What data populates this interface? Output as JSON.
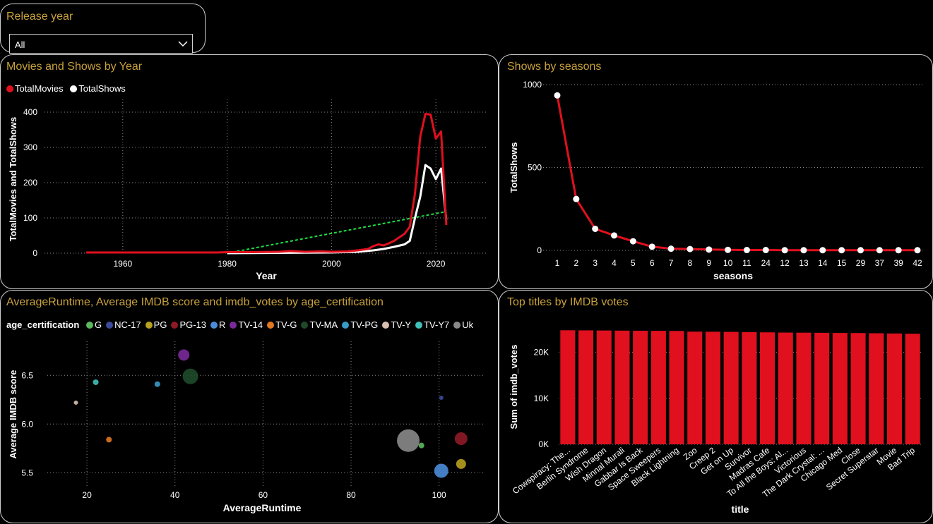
{
  "slicer": {
    "title": "Release year",
    "value": "All"
  },
  "panels": {
    "movies_shows": "Movies and Shows by Year",
    "shows_seasons": "Shows by seasons",
    "scatter": "AverageRuntime, Average IMDB score and imdb_votes by age_certification",
    "top_titles": "Top titles by IMDB votes"
  },
  "colors": {
    "accent": "#c8a13c",
    "movies": "#e0101e",
    "shows": "#ffffff",
    "trend": "#22dd44",
    "bar": "#e0101e"
  },
  "chart_data": [
    {
      "type": "line",
      "title": "Movies and Shows by Year",
      "xlabel": "Year",
      "ylabel": "TotalMovies and TotalShows",
      "xlim": [
        1945,
        2030
      ],
      "ylim": [
        0,
        420
      ],
      "xticks": [
        1960,
        1980,
        2000,
        2020
      ],
      "yticks": [
        0,
        100,
        200,
        300,
        400
      ],
      "legend": "top-left",
      "series": [
        {
          "name": "TotalMovies",
          "color": "#e0101e",
          "x": [
            1953,
            1960,
            1970,
            1978,
            1980,
            1985,
            1990,
            1992,
            1995,
            1998,
            2000,
            2003,
            2005,
            2007,
            2008,
            2009,
            2010,
            2011,
            2012,
            2013,
            2014,
            2015,
            2016,
            2017,
            2018,
            2019,
            2020,
            2021,
            2022
          ],
          "y": [
            2,
            2,
            2,
            2,
            3,
            3,
            4,
            6,
            4,
            5,
            4,
            5,
            8,
            12,
            20,
            25,
            22,
            28,
            35,
            45,
            55,
            75,
            170,
            330,
            395,
            393,
            325,
            345,
            80
          ]
        },
        {
          "name": "TotalShows",
          "color": "#ffffff",
          "x": [
            1980,
            1990,
            2000,
            2005,
            2008,
            2010,
            2012,
            2014,
            2015,
            2016,
            2017,
            2018,
            2019,
            2020,
            2021,
            2022
          ],
          "y": [
            0,
            1,
            2,
            4,
            8,
            12,
            18,
            25,
            35,
            100,
            160,
            250,
            240,
            210,
            240,
            95
          ]
        }
      ],
      "trendline": {
        "color": "#22dd44",
        "x": [
          1980,
          2022
        ],
        "y": [
          0,
          118
        ]
      }
    },
    {
      "type": "line",
      "title": "Shows by seasons",
      "xlabel": "seasons",
      "ylabel": "TotalShows",
      "ylim": [
        0,
        1000
      ],
      "yticks": [
        0,
        500,
        1000
      ],
      "categories": [
        "1",
        "2",
        "3",
        "4",
        "5",
        "6",
        "7",
        "8",
        "9",
        "10",
        "11",
        "24",
        "12",
        "13",
        "14",
        "15",
        "29",
        "37",
        "39",
        "42"
      ],
      "values": [
        935,
        310,
        130,
        90,
        55,
        22,
        10,
        8,
        5,
        3,
        2,
        2,
        1,
        1,
        1,
        1,
        1,
        1,
        1,
        1
      ]
    },
    {
      "type": "scatter",
      "title": "AverageRuntime, Average IMDB score and imdb_votes by age_certification",
      "xlabel": "AverageRuntime",
      "ylabel": "Average IMDB score",
      "legend_title": "age_certification",
      "xlim": [
        11,
        110
      ],
      "ylim": [
        5.35,
        6.85
      ],
      "xticks": [
        20,
        40,
        60,
        80,
        100
      ],
      "yticks": [
        5.5,
        6.0,
        6.5
      ],
      "points": [
        {
          "label": "G",
          "x": 96,
          "y": 5.78,
          "size": 4,
          "color": "#5cb85c"
        },
        {
          "label": "NC-17",
          "x": 100.5,
          "y": 6.27,
          "size": 3,
          "color": "#3a4a9a"
        },
        {
          "label": "PG",
          "x": 105,
          "y": 5.59,
          "size": 7,
          "color": "#b8a020"
        },
        {
          "label": "PG-13",
          "x": 105,
          "y": 5.85,
          "size": 9,
          "color": "#8e1a26"
        },
        {
          "label": "R",
          "x": 100.5,
          "y": 5.52,
          "size": 10,
          "color": "#4a8cd8"
        },
        {
          "label": "TV-14",
          "x": 42,
          "y": 6.71,
          "size": 8,
          "color": "#7a2a9a"
        },
        {
          "label": "TV-G",
          "x": 25,
          "y": 5.84,
          "size": 4,
          "color": "#e07820"
        },
        {
          "label": "TV-MA",
          "x": 43.5,
          "y": 6.49,
          "size": 11,
          "color": "#1e4a2a"
        },
        {
          "label": "TV-PG",
          "x": 36,
          "y": 6.41,
          "size": 4,
          "color": "#3a9ac8"
        },
        {
          "label": "TV-Y",
          "x": 17.5,
          "y": 6.22,
          "size": 3,
          "color": "#d8c0b0"
        },
        {
          "label": "TV-Y7",
          "x": 22,
          "y": 6.43,
          "size": 4,
          "color": "#40c0b8"
        },
        {
          "label": "Uk",
          "x": 93,
          "y": 5.83,
          "size": 16,
          "color": "#8a8a8a"
        }
      ]
    },
    {
      "type": "bar",
      "title": "Top titles by IMDB votes",
      "xlabel": "title",
      "ylabel": "Sum of imdb_votes",
      "ylim": [
        0,
        25000
      ],
      "yticks": [
        0,
        10000,
        20000
      ],
      "yticklabels": [
        "0K",
        "10K",
        "20K"
      ],
      "categories": [
        "Cowspiracy: The...",
        "Berlin Syndrome",
        "Wish Dragon",
        "Minnal Murali",
        "Gabbar Is Back",
        "Space Sweepers",
        "Black Lightning",
        "Zoo",
        "Creep 2",
        "Get on Up",
        "Survivor",
        "Madras Cafe",
        "To All the Boys: Al...",
        "Victorious",
        "The Dark Crystal: ...",
        "Chicago Med",
        "Close",
        "Secret Superstar",
        "Movie",
        "Bad Trip"
      ],
      "values": [
        24800,
        24780,
        24750,
        24720,
        24700,
        24680,
        24650,
        24500,
        24480,
        24450,
        24400,
        24350,
        24300,
        24280,
        24250,
        24220,
        24200,
        24150,
        24100,
        24050
      ]
    }
  ]
}
